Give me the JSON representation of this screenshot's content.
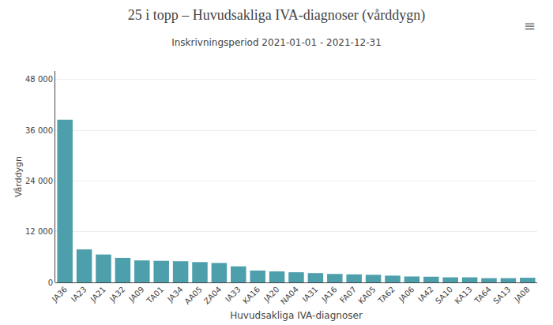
{
  "chart_data": {
    "type": "bar",
    "title": "25 i topp – Huvudsakliga IVA-diagnoser (vårddygn)",
    "subtitle": "Inskrivningsperiod 2021-01-01 - 2021-12-31",
    "xlabel": "Huvudsakliga IVA-diagnoser",
    "ylabel": "Vårddygn",
    "categories": [
      "JA36",
      "IA23",
      "JA21",
      "JA32",
      "JA09",
      "TA01",
      "JA34",
      "AA05",
      "ZA04",
      "IA33",
      "KA16",
      "JA20",
      "NA04",
      "IA31",
      "JA16",
      "FA07",
      "KA05",
      "TA62",
      "JA06",
      "IA42",
      "SA10",
      "KA13",
      "TA64",
      "SA13",
      "JA08"
    ],
    "values": [
      38500,
      7800,
      6600,
      5800,
      5200,
      5100,
      5000,
      4800,
      4600,
      3800,
      2800,
      2600,
      2400,
      2200,
      2000,
      1900,
      1800,
      1600,
      1400,
      1350,
      1200,
      1200,
      1000,
      1000,
      1100
    ],
    "color": "#4d9fac",
    "ylim": [
      0,
      50000
    ],
    "yticks": [
      0,
      {
        "value": 12000,
        "label": "12 000"
      },
      {
        "value": 24000,
        "label": "24 000"
      },
      {
        "value": 36000,
        "label": "36 000"
      },
      {
        "value": 48000,
        "label": "48 000"
      }
    ],
    "grid": true,
    "annotations": [
      "≡"
    ]
  }
}
